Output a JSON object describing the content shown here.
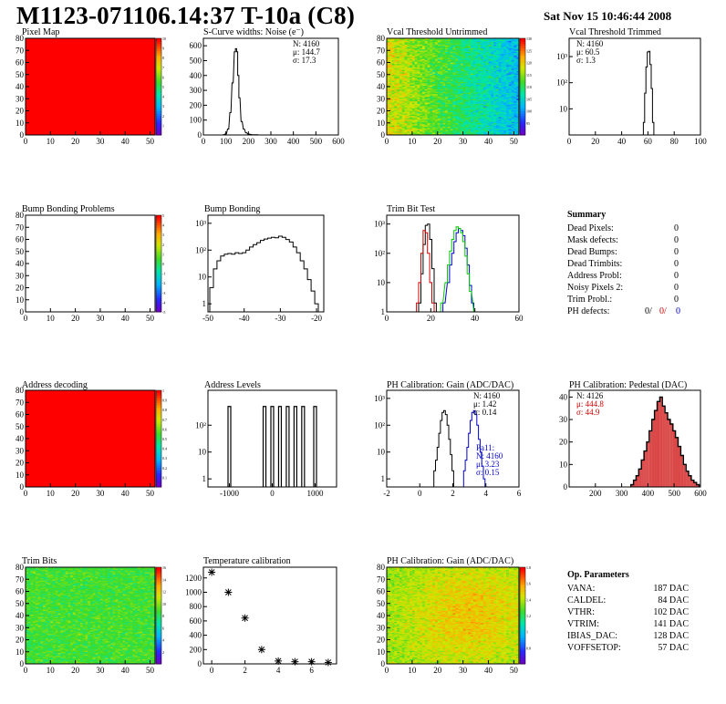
{
  "header": {
    "title": "M1123-071106.14:37 T-10a (C8)",
    "date": "Sat Nov 15 10:46:44 2008"
  },
  "colors": {
    "red": "#ff0000",
    "blue": "#0000cc",
    "green": "#00cc00",
    "dark_red": "#cc0000"
  },
  "chart_data": [
    {
      "id": "pixel-map",
      "type": "heatmap",
      "title": "Pixel Map",
      "xlim": [
        0,
        52
      ],
      "ylim": [
        0,
        80
      ],
      "xticks": [
        0,
        10,
        20,
        30,
        40,
        50
      ],
      "yticks": [
        0,
        10,
        20,
        30,
        40,
        50,
        60,
        70,
        80
      ],
      "zlim": [
        0,
        10
      ],
      "zticks": [
        1,
        2,
        3,
        4,
        5,
        6,
        7,
        8,
        9,
        10
      ],
      "fill": "uniform",
      "fill_value": 10
    },
    {
      "id": "s-curve-noise",
      "type": "histogram",
      "title": "S-Curve widths: Noise (e⁻)",
      "xlim": [
        0,
        600
      ],
      "ylim": [
        0,
        650
      ],
      "xticks": [
        0,
        100,
        200,
        300,
        400,
        500,
        600
      ],
      "yticks": [
        0,
        100,
        200,
        300,
        400,
        500,
        600
      ],
      "stats": [
        "N: 4160",
        "μ: 144.7",
        "σ: 17.3"
      ],
      "x": [
        90,
        100,
        110,
        120,
        130,
        140,
        145,
        150,
        155,
        160,
        170,
        180,
        190,
        200,
        220,
        240
      ],
      "values": [
        2,
        8,
        40,
        150,
        350,
        560,
        580,
        560,
        400,
        250,
        90,
        40,
        15,
        6,
        2,
        1
      ]
    },
    {
      "id": "vcal-untrimmed",
      "type": "heatmap",
      "title": "Vcal Threshold Untrimmed",
      "xlim": [
        0,
        52
      ],
      "ylim": [
        0,
        80
      ],
      "xticks": [
        0,
        10,
        20,
        30,
        40,
        50
      ],
      "yticks": [
        0,
        10,
        20,
        30,
        40,
        50,
        60,
        70,
        80
      ],
      "zlim": [
        90,
        130
      ],
      "zticks": [
        95,
        100,
        105,
        110,
        115,
        120,
        125,
        130
      ],
      "fill": "gradient-left-high"
    },
    {
      "id": "vcal-trimmed",
      "type": "histogram",
      "title": "Vcal Threshold Trimmed",
      "log_y": true,
      "xlim": [
        0,
        100
      ],
      "ylim": [
        1,
        5000
      ],
      "xticks": [
        0,
        20,
        40,
        60,
        80,
        100
      ],
      "ytick_labels": [
        "10",
        "10²",
        "10³"
      ],
      "yticks": [
        10,
        100,
        1000
      ],
      "stats": [
        "N: 4160",
        "μ: 60.5",
        "σ:  1.3"
      ],
      "x": [
        57,
        58,
        59,
        60,
        61,
        62,
        63,
        64
      ],
      "values": [
        3,
        40,
        400,
        1500,
        1600,
        500,
        60,
        3
      ]
    },
    {
      "id": "bump-bonding-problems",
      "type": "heatmap",
      "title": "Bump Bonding Problems",
      "xlim": [
        0,
        52
      ],
      "ylim": [
        0,
        80
      ],
      "xticks": [
        0,
        10,
        20,
        30,
        40,
        50
      ],
      "yticks": [
        0,
        10,
        20,
        30,
        40,
        50,
        60,
        70,
        80
      ],
      "zlim": [
        -5,
        5
      ],
      "zticks": [
        -5,
        -4,
        -3,
        -2,
        -1,
        0,
        1,
        2,
        3,
        4,
        5
      ],
      "fill": "empty"
    },
    {
      "id": "bump-bonding",
      "type": "histogram",
      "title": "Bump Bonding",
      "log_y": true,
      "xlim": [
        -50,
        -18
      ],
      "ylim": [
        0.5,
        2000
      ],
      "xticks": [
        -50,
        -40,
        -30,
        -20
      ],
      "ytick_labels": [
        "1",
        "10",
        "10²",
        "10³"
      ],
      "yticks": [
        1,
        10,
        100,
        1000
      ],
      "x": [
        -49,
        -48,
        -47,
        -46,
        -45,
        -44,
        -43,
        -42,
        -41,
        -40,
        -39,
        -38,
        -37,
        -36,
        -35,
        -34,
        -33,
        -32,
        -31,
        -30,
        -29,
        -28,
        -27,
        -26,
        -25,
        -24,
        -23,
        -22,
        -21,
        -20
      ],
      "values": [
        4,
        20,
        40,
        60,
        70,
        75,
        70,
        80,
        75,
        80,
        100,
        130,
        160,
        190,
        230,
        260,
        280,
        300,
        290,
        330,
        300,
        250,
        200,
        130,
        80,
        40,
        20,
        8,
        3,
        1
      ]
    },
    {
      "id": "trim-bit-test",
      "type": "histogram",
      "title": "Trim Bit Test",
      "log_y": true,
      "xlim": [
        0,
        60
      ],
      "ylim": [
        1,
        2000
      ],
      "xticks": [
        0,
        20,
        40,
        60
      ],
      "ytick_labels": [
        "1",
        "10",
        "10²",
        "10³"
      ],
      "yticks": [
        1,
        10,
        100,
        1000
      ],
      "series": [
        {
          "color": "#000000",
          "x": [
            15,
            16,
            17,
            18,
            19,
            20,
            21,
            22
          ],
          "values": [
            2,
            20,
            200,
            900,
            1000,
            300,
            30,
            2
          ]
        },
        {
          "color": "#cc0000",
          "x": [
            14,
            15,
            16,
            17,
            18,
            19,
            20,
            21
          ],
          "values": [
            2,
            10,
            100,
            600,
            500,
            100,
            10,
            2
          ]
        },
        {
          "color": "#0000cc",
          "x": [
            26,
            28,
            29,
            30,
            31,
            32,
            33,
            34,
            35,
            36,
            37,
            38,
            39
          ],
          "values": [
            2,
            10,
            40,
            100,
            250,
            500,
            700,
            600,
            400,
            150,
            40,
            8,
            2
          ]
        },
        {
          "color": "#00cc00",
          "x": [
            25,
            27,
            28,
            29,
            30,
            31,
            32,
            33,
            34,
            35,
            36,
            37,
            38,
            40
          ],
          "values": [
            2,
            10,
            40,
            120,
            300,
            600,
            800,
            700,
            500,
            250,
            80,
            20,
            5,
            1
          ]
        }
      ]
    },
    {
      "id": "address-decoding",
      "type": "heatmap",
      "title": "Address decoding",
      "xlim": [
        0,
        52
      ],
      "ylim": [
        0,
        80
      ],
      "xticks": [
        0,
        10,
        20,
        30,
        40,
        50
      ],
      "yticks": [
        0,
        10,
        20,
        30,
        40,
        50,
        60,
        70,
        80
      ],
      "zlim": [
        0,
        1
      ],
      "zticks": [
        0.1,
        0.2,
        0.3,
        0.4,
        0.5,
        0.6,
        0.7,
        0.8,
        0.9,
        1
      ],
      "fill": "uniform",
      "fill_value": 1
    },
    {
      "id": "address-levels",
      "type": "histogram",
      "title": "Address Levels",
      "log_y": true,
      "xlim": [
        -1500,
        1500
      ],
      "ylim": [
        0.5,
        2000
      ],
      "xticks": [
        -1000,
        0,
        1000
      ],
      "ytick_labels": [
        "1",
        "10",
        "10²"
      ],
      "yticks": [
        1,
        10,
        100
      ],
      "x": [
        -1000,
        -180,
        0,
        180,
        360,
        540,
        720,
        1000
      ],
      "values": [
        500,
        500,
        500,
        500,
        500,
        500,
        500,
        500
      ]
    },
    {
      "id": "ph-gain-hist",
      "type": "histogram",
      "title": "PH Calibration: Gain (ADC/DAC)",
      "log_y": true,
      "xlim": [
        -2,
        6
      ],
      "ylim": [
        0.5,
        2000
      ],
      "xticks": [
        -2,
        0,
        2,
        4,
        6
      ],
      "ytick_labels": [
        "1",
        "10",
        "10²",
        "10³"
      ],
      "yticks": [
        1,
        10,
        100,
        1000
      ],
      "stats": [
        "N: 4160",
        "μ: 1.42",
        "σ: 0.14"
      ],
      "stats2": [
        "Pa11:",
        "N: 4160",
        "μ: 3.23",
        "σ: 0.15"
      ],
      "series": [
        {
          "color": "#000000",
          "x": [
            0.9,
            1.0,
            1.1,
            1.2,
            1.3,
            1.4,
            1.5,
            1.6,
            1.7,
            1.8,
            1.9,
            2.0
          ],
          "values": [
            2,
            5,
            15,
            50,
            150,
            300,
            350,
            250,
            100,
            30,
            8,
            2
          ]
        },
        {
          "color": "#0000cc",
          "x": [
            2.7,
            2.8,
            2.9,
            3.0,
            3.1,
            3.2,
            3.3,
            3.4,
            3.5,
            3.6,
            3.7,
            3.8,
            3.9
          ],
          "values": [
            2,
            5,
            15,
            50,
            150,
            300,
            350,
            250,
            100,
            30,
            10,
            3,
            1
          ]
        }
      ]
    },
    {
      "id": "ph-pedestal-hist",
      "type": "histogram",
      "title": "PH Calibration: Pedestal (DAC)",
      "xlim": [
        100,
        600
      ],
      "ylim": [
        0,
        43
      ],
      "xticks": [
        200,
        300,
        400,
        500,
        600
      ],
      "yticks": [
        0,
        10,
        20,
        30,
        40
      ],
      "stats": [
        "N: 4126",
        "μ: 444.8",
        "σ: 44.9"
      ],
      "stats_colors": [
        "#000000",
        "#cc0000",
        "#cc0000"
      ],
      "x": [
        340,
        350,
        360,
        370,
        380,
        390,
        400,
        410,
        420,
        430,
        440,
        450,
        460,
        470,
        480,
        490,
        500,
        510,
        520,
        530,
        540,
        550,
        560,
        570,
        580,
        590
      ],
      "values": [
        1,
        3,
        5,
        8,
        12,
        16,
        20,
        25,
        30,
        34,
        38,
        40,
        36,
        33,
        30,
        28,
        25,
        22,
        18,
        14,
        10,
        7,
        5,
        3,
        2,
        1
      ]
    },
    {
      "id": "trim-bits",
      "type": "heatmap",
      "title": "Trim Bits",
      "xlim": [
        0,
        52
      ],
      "ylim": [
        0,
        80
      ],
      "xticks": [
        0,
        10,
        20,
        30,
        40,
        50
      ],
      "yticks": [
        0,
        10,
        20,
        30,
        40,
        50,
        60,
        70,
        80
      ],
      "zlim": [
        0,
        16
      ],
      "zticks": [
        2,
        4,
        6,
        8,
        10,
        12,
        14,
        16
      ],
      "fill": "noise-mid"
    },
    {
      "id": "temperature-calibration",
      "type": "scatter",
      "title": "Temperature calibration",
      "xlim": [
        -0.5,
        7.5
      ],
      "ylim": [
        0,
        1350
      ],
      "xticks": [
        0,
        2,
        4,
        6
      ],
      "yticks": [
        0,
        200,
        400,
        600,
        800,
        1000,
        1200
      ],
      "x": [
        0,
        1,
        2,
        3,
        4,
        5,
        6,
        7
      ],
      "values": [
        1280,
        1000,
        640,
        200,
        40,
        30,
        30,
        20
      ]
    },
    {
      "id": "ph-gain-map",
      "type": "heatmap",
      "title": "PH Calibration: Gain (ADC/DAC)",
      "xlim": [
        0,
        52
      ],
      "ylim": [
        0,
        80
      ],
      "xticks": [
        0,
        10,
        20,
        30,
        40,
        50
      ],
      "yticks": [
        0,
        10,
        20,
        30,
        40,
        50,
        60,
        70,
        80
      ],
      "zlim": [
        0.6,
        1.8
      ],
      "zticks": [
        0.8,
        1,
        1.2,
        1.4,
        1.6,
        1.8
      ],
      "fill": "noise-warm"
    }
  ],
  "summary": {
    "title": "Summary",
    "rows": [
      {
        "label": "Dead Pixels:",
        "value": "0"
      },
      {
        "label": "Mask defects:",
        "value": "0"
      },
      {
        "label": "Dead Bumps:",
        "value": "0"
      },
      {
        "label": "Dead Trimbits:",
        "value": "0"
      },
      {
        "label": "Address Probl:",
        "value": "0"
      },
      {
        "label": "Noisy Pixels 2:",
        "value": "0"
      },
      {
        "label": "Trim Probl.:",
        "value": "0"
      }
    ],
    "ph_label": "PH defects:",
    "ph_values": [
      {
        "value": "0/",
        "color": "#000000"
      },
      {
        "value": "0/",
        "color": "#cc0000"
      },
      {
        "value": "0",
        "color": "#0000cc"
      }
    ]
  },
  "op_params": {
    "title": "Op. Parameters",
    "rows": [
      {
        "label": "VANA:",
        "value": "187 DAC"
      },
      {
        "label": "CALDEL:",
        "value": "84 DAC"
      },
      {
        "label": "VTHR:",
        "value": "102 DAC"
      },
      {
        "label": "VTRIM:",
        "value": "141 DAC"
      },
      {
        "label": "IBIAS_DAC:",
        "value": "128 DAC"
      },
      {
        "label": "VOFFSETOP:",
        "value": "57 DAC"
      }
    ]
  }
}
